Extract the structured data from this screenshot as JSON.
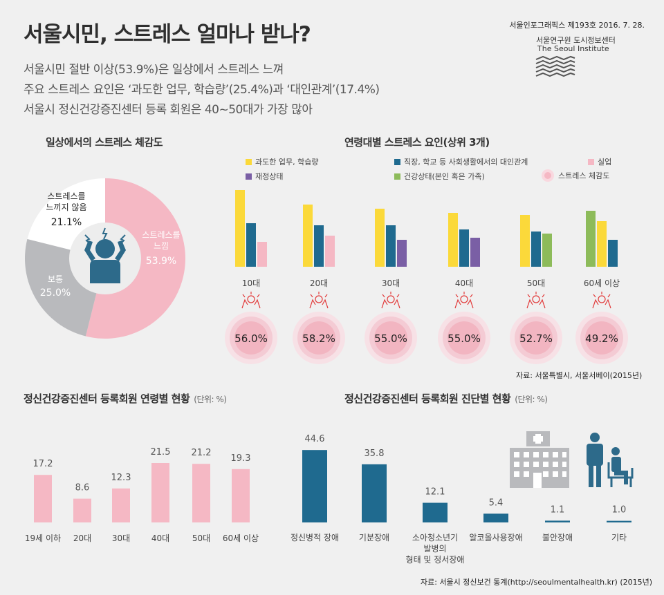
{
  "header": {
    "title": "서울시민, 스트레스 얼마나 받나?",
    "subtitles": [
      "서울시민 절반 이상(53.9%)은 일상에서 스트레스 느껴",
      "주요 스트레스 요인은 ‘과도한 업무, 학습량’(25.4%)과 ‘대인관계’(17.4%)",
      "서울시 정신건강증진센터 등록 회원은 40~50대가 가장 많아"
    ],
    "issue": "서울인포그래픽스 제193호 2016. 7. 28.",
    "institute_ko": "서울연구원 도시정보센터",
    "institute_en": "The Seoul Institute"
  },
  "colors": {
    "pink": "#f5b8c4",
    "gray": "#b9babd",
    "white": "#ffffff",
    "navy": "#1f6a8f",
    "yellow": "#fbd93a",
    "purple": "#7a5fa5",
    "green": "#8dbb5a",
    "icon": "#2d6a8a"
  },
  "pie_section": {
    "title": "일상에서의 스트레스 체감도",
    "labels": {
      "feel": [
        "스트레스를",
        "느낌"
      ],
      "normal": [
        "보통"
      ],
      "not_feel": [
        "스트레스를",
        "느끼지 않음"
      ]
    },
    "value_text": {
      "feel": "53.9%",
      "normal": "25.0%",
      "not_feel": "21.1%"
    }
  },
  "age_factor_section": {
    "title": "연령대별 스트레스 요인(상위 3개)",
    "legend": [
      {
        "label": "과도한 업무, 학습량",
        "color": "#fbd93a"
      },
      {
        "label": "직장, 학교 등 사회생활에서의 대인관계",
        "color": "#1f6a8f"
      },
      {
        "label": "실업",
        "color": "#f5b8c4"
      },
      {
        "label": "재정상태",
        "color": "#7a5fa5"
      },
      {
        "label": "건강상태(본인 혹은 가족)",
        "color": "#8dbb5a"
      },
      {
        "label": "스트레스 체감도",
        "color": "#f5b8c4"
      }
    ],
    "stress_text": [
      "56.0%",
      "58.2%",
      "55.0%",
      "55.0%",
      "52.7%",
      "49.2%"
    ],
    "source": "자료: 서울특별시, 서울서베이(2015년)"
  },
  "member_age_section": {
    "title": "정신건강증진센터 등록회원 연령별 현황",
    "unit": "(단위: %)"
  },
  "diagnosis_section": {
    "title": "정신건강증진센터 등록회원 진단별 현황",
    "unit": "(단위: %)",
    "source": "자료: 서울시 정신보건 통계(http://seoulmentalhealth.kr) (2015년)"
  },
  "chart_data": [
    {
      "type": "pie",
      "categories": [
        "스트레스를 느낌",
        "보통",
        "스트레스를 느끼지 않음"
      ],
      "values": [
        53.9,
        25.0,
        21.1
      ],
      "colors": [
        "#f5b8c4",
        "#b9babd",
        "#ffffff"
      ]
    },
    {
      "type": "bar",
      "categories": [
        "10대",
        "20대",
        "30대",
        "40대",
        "50대",
        "60세 이상"
      ],
      "series": [
        {
          "name": "과도한 업무, 학습량",
          "values": [
            37,
            30,
            28,
            26,
            25,
            22
          ]
        },
        {
          "name": "직장, 학교 등 사회생활에서의 대인관계",
          "values": [
            21,
            20,
            20,
            18,
            17,
            13
          ]
        },
        {
          "name": "실업",
          "values": [
            12,
            15,
            null,
            null,
            null,
            null
          ]
        },
        {
          "name": "재정상태",
          "values": [
            null,
            null,
            13,
            14,
            null,
            null
          ]
        },
        {
          "name": "건강상태(본인 혹은 가족)",
          "values": [
            null,
            null,
            null,
            null,
            16,
            27
          ]
        },
        {
          "name": "스트레스 체감도",
          "values": [
            56.0,
            58.2,
            55.0,
            55.0,
            52.7,
            49.2
          ]
        }
      ],
      "bar_order": [
        [
          "과도한 업무, 학습량",
          "직장, 학교 등 사회생활에서의 대인관계",
          "실업"
        ],
        [
          "과도한 업무, 학습량",
          "직장, 학교 등 사회생활에서의 대인관계",
          "실업"
        ],
        [
          "과도한 업무, 학습량",
          "직장, 학교 등 사회생활에서의 대인관계",
          "재정상태"
        ],
        [
          "과도한 업무, 학습량",
          "직장, 학교 등 사회생활에서의 대인관계",
          "재정상태"
        ],
        [
          "과도한 업무, 학습량",
          "직장, 학교 등 사회생활에서의 대인관계",
          "건강상태(본인 혹은 가족)"
        ],
        [
          "건강상태(본인 혹은 가족)",
          "과도한 업무, 학습량",
          "직장, 학교 등 사회생활에서의 대인관계"
        ]
      ]
    },
    {
      "type": "bar",
      "categories": [
        "19세 이하",
        "20대",
        "30대",
        "40대",
        "50대",
        "60세 이상"
      ],
      "values": [
        17.2,
        8.6,
        12.3,
        21.5,
        21.2,
        19.3
      ],
      "labels": [
        "17.2",
        "8.6",
        "12.3",
        "21.5",
        "21.2",
        "19.3"
      ],
      "color": "#f5b8c4"
    },
    {
      "type": "bar",
      "categories": [
        "정신병적 장애",
        "기분장애",
        "소아청소년기 발병의 형태 및 정서장애",
        "알코올사용장애",
        "불안장애",
        "기타"
      ],
      "category_lines": [
        [
          "정신병적 장애"
        ],
        [
          "기분장애"
        ],
        [
          "소아청소년기",
          "발병의",
          "형태 및 정서장애"
        ],
        [
          "알코올사용장애"
        ],
        [
          "불안장애"
        ],
        [
          "기타"
        ]
      ],
      "values": [
        44.6,
        35.8,
        12.1,
        5.4,
        1.1,
        1.0
      ],
      "labels": [
        "44.6",
        "35.8",
        "12.1",
        "5.4",
        "1.1",
        "1.0"
      ],
      "color": "#1f6a8f"
    }
  ]
}
